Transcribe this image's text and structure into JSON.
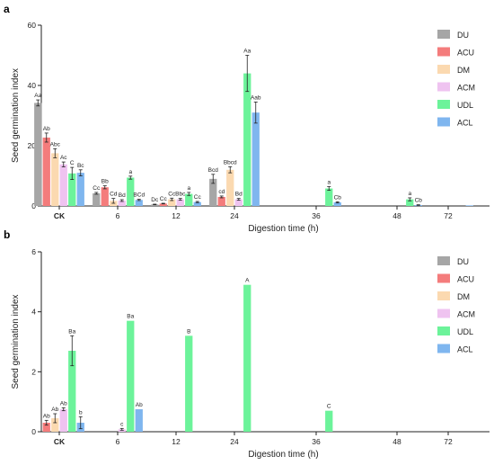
{
  "colors": {
    "DU": "#a6a6a6",
    "ACU": "#f47c7c",
    "DM": "#fbd9b0",
    "ACM": "#efc3f0",
    "UDL": "#6cf39a",
    "ACL": "#7fb6ef"
  },
  "chart_data": [
    {
      "panel": "a",
      "type": "bar",
      "xlabel": "Digestion time (h)",
      "ylabel": "Seed germination index",
      "ylim": [
        0,
        60
      ],
      "yticks": [
        0,
        20,
        40,
        60
      ],
      "grid": false,
      "legend_position": "top-right",
      "categories": [
        "CK",
        "6",
        "12",
        "24",
        "36",
        "48",
        "72"
      ],
      "series": [
        {
          "name": "DU",
          "values": [
            34.2,
            4.2,
            0.5,
            9.0,
            0,
            0,
            0
          ],
          "errors": [
            1.0,
            0.3,
            0.1,
            1.5,
            0,
            0,
            0
          ],
          "labels": [
            "Aa",
            "Cc",
            "Dc",
            "Bcd",
            "",
            "",
            ""
          ]
        },
        {
          "name": "ACU",
          "values": [
            22.7,
            6.2,
            0.8,
            3.0,
            0,
            0,
            0
          ],
          "errors": [
            1.5,
            0.5,
            0.1,
            0.3,
            0,
            0,
            0
          ],
          "labels": [
            "Ab",
            "Bb",
            "Cc",
            "cd",
            "",
            "",
            ""
          ]
        },
        {
          "name": "DM",
          "values": [
            17.5,
            1.7,
            2.2,
            12.0,
            0,
            0,
            0
          ],
          "errors": [
            1.5,
            0.8,
            0.4,
            1.0,
            0,
            0,
            0
          ],
          "labels": [
            "Abc",
            "Cd",
            "Cc",
            "Bbcd",
            "",
            "",
            ""
          ]
        },
        {
          "name": "ACM",
          "values": [
            13.8,
            1.8,
            2.2,
            2.2,
            0,
            0,
            0
          ],
          "errors": [
            0.8,
            0.3,
            0.3,
            0.3,
            0,
            0,
            0
          ],
          "labels": [
            "Ac",
            "Bd",
            "Bbc",
            "Bd",
            "",
            "",
            ""
          ]
        },
        {
          "name": "UDL",
          "values": [
            10.8,
            9.4,
            4.0,
            44.0,
            5.8,
            2.2,
            0
          ],
          "errors": [
            2.0,
            0.5,
            0.5,
            6.0,
            0.6,
            0.5,
            0
          ],
          "labels": [
            "C",
            "a",
            "a",
            "Aa",
            "a",
            "a",
            ""
          ]
        },
        {
          "name": "ACL",
          "values": [
            11.0,
            2.0,
            1.3,
            31.0,
            1.2,
            0.3,
            0.2
          ],
          "errors": [
            1.0,
            0.2,
            0.2,
            3.5,
            0.2,
            0.1,
            0
          ],
          "labels": [
            "Bc",
            "BCd",
            "Cc",
            "Aab",
            "Cb",
            "Cb",
            ""
          ]
        }
      ]
    },
    {
      "panel": "b",
      "type": "bar",
      "xlabel": "Digestion time (h)",
      "ylabel": "Seed germination index",
      "ylim": [
        0,
        6
      ],
      "yticks": [
        0,
        2,
        4,
        6
      ],
      "grid": false,
      "legend_position": "top-right",
      "categories": [
        "CK",
        "6",
        "12",
        "24",
        "36",
        "48",
        "72"
      ],
      "series": [
        {
          "name": "DU",
          "values": [
            0,
            0,
            0,
            0,
            0,
            0,
            0
          ],
          "errors": [
            0,
            0,
            0,
            0,
            0,
            0,
            0
          ],
          "labels": [
            "",
            "",
            "",
            "",
            "",
            "",
            ""
          ]
        },
        {
          "name": "ACU",
          "values": [
            0.3,
            0,
            0,
            0,
            0,
            0,
            0
          ],
          "errors": [
            0.08,
            0,
            0,
            0,
            0,
            0,
            0
          ],
          "labels": [
            "Ab",
            "",
            "",
            "",
            "",
            "",
            ""
          ]
        },
        {
          "name": "DM",
          "values": [
            0.45,
            0,
            0,
            0,
            0,
            0,
            0
          ],
          "errors": [
            0.15,
            0,
            0,
            0,
            0,
            0,
            0
          ],
          "labels": [
            "Ab",
            "",
            "",
            "",
            "",
            "",
            ""
          ]
        },
        {
          "name": "ACM",
          "values": [
            0.75,
            0.08,
            0,
            0,
            0,
            0,
            0
          ],
          "errors": [
            0.05,
            0.03,
            0,
            0,
            0,
            0,
            0
          ],
          "labels": [
            "Ab",
            "c",
            "",
            "",
            "",
            "",
            ""
          ]
        },
        {
          "name": "UDL",
          "values": [
            2.7,
            3.7,
            3.2,
            4.9,
            0.7,
            0,
            0
          ],
          "errors": [
            0.5,
            0,
            0,
            0,
            0,
            0,
            0
          ],
          "labels": [
            "Ba",
            "Ba",
            "B",
            "A",
            "C",
            "",
            ""
          ]
        },
        {
          "name": "ACL",
          "values": [
            0.3,
            0.75,
            0,
            0,
            0,
            0,
            0
          ],
          "errors": [
            0.2,
            0,
            0,
            0,
            0,
            0,
            0
          ],
          "labels": [
            "b",
            "Ab",
            "",
            "",
            "",
            "",
            ""
          ]
        }
      ]
    }
  ],
  "panels": [
    {
      "label": "a"
    },
    {
      "label": "b"
    }
  ]
}
